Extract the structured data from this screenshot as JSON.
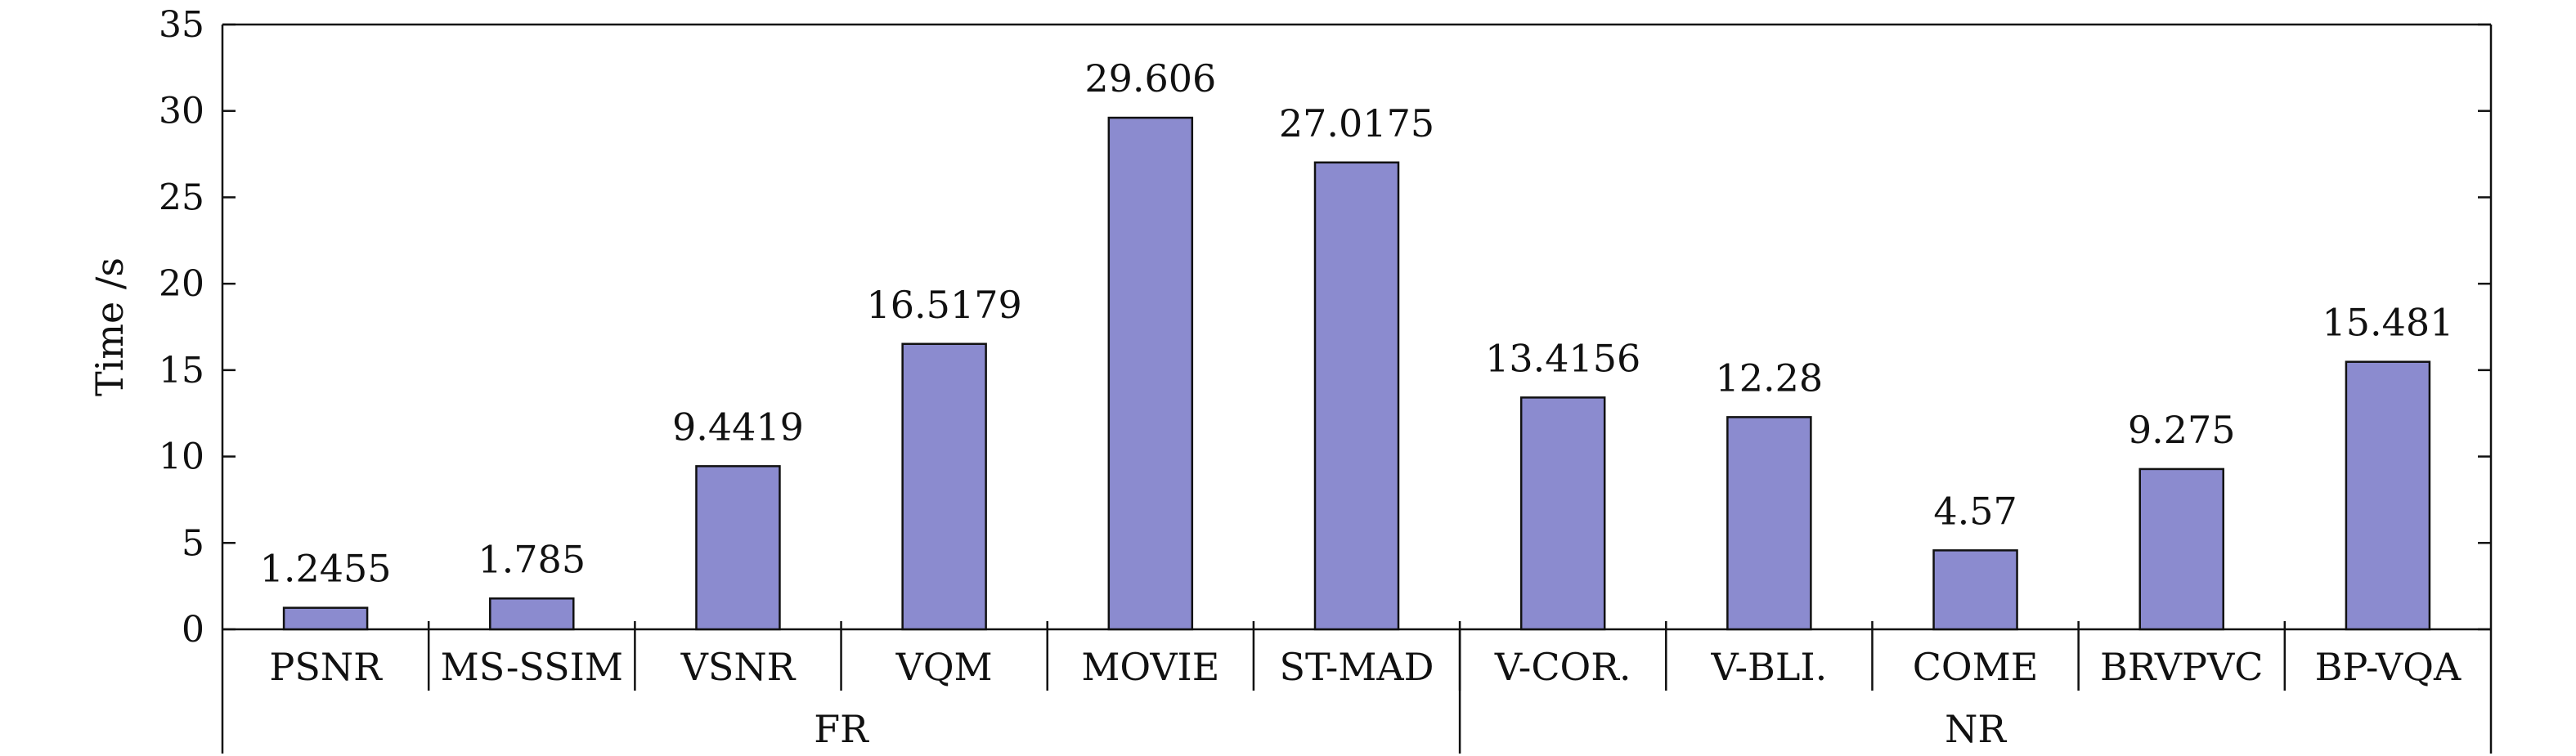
{
  "chart_data": {
    "type": "bar",
    "ylabel": "Time /s",
    "ylim": [
      0,
      35
    ],
    "yticks": [
      0,
      5,
      10,
      15,
      20,
      25,
      30,
      35
    ],
    "grid": false,
    "bar_color": "#8b8bcf",
    "categories": [
      "PSNR",
      "MS-SSIM",
      "VSNR",
      "VQM",
      "MOVIE",
      "ST-MAD",
      "V-COR.",
      "V-BLI.",
      "COME",
      "BRVPVC",
      "BP-VQA"
    ],
    "values": [
      1.2455,
      1.785,
      9.4419,
      16.5179,
      29.606,
      27.0175,
      13.4156,
      12.28,
      4.57,
      9.275,
      15.481
    ],
    "value_labels": [
      "1.2455",
      "1.785",
      "9.4419",
      "16.5179",
      "29.606",
      "27.0175",
      "13.4156",
      "12.28",
      "4.57",
      "9.275",
      "15.481"
    ],
    "groups": [
      {
        "label": "FR",
        "count": 6
      },
      {
        "label": "NR",
        "count": 5
      }
    ]
  }
}
